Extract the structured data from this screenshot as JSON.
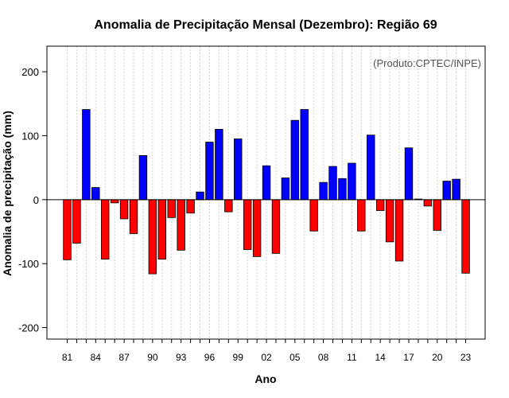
{
  "chart_data": {
    "type": "bar",
    "title": "Anomalia de Precipitação Mensal (Dezembro): Região 69",
    "xlabel": "Ano",
    "ylabel": "Anomalia de precipitação (mm)",
    "credit": "(Produto:CPTEC/INPE)",
    "ylim": [
      -218,
      240
    ],
    "yticks": [
      -200,
      -100,
      0,
      100,
      200
    ],
    "years": [
      1981,
      1982,
      1983,
      1984,
      1985,
      1986,
      1987,
      1988,
      1989,
      1990,
      1991,
      1992,
      1993,
      1994,
      1995,
      1996,
      1997,
      1998,
      1999,
      2000,
      2001,
      2002,
      2003,
      2004,
      2005,
      2006,
      2007,
      2008,
      2009,
      2010,
      2011,
      2012,
      2013,
      2014,
      2015,
      2016,
      2017,
      2018,
      2019,
      2020,
      2021,
      2022,
      2023
    ],
    "values": [
      -94,
      -68,
      141,
      19,
      -93,
      -5,
      -30,
      -53,
      69,
      -116,
      -93,
      -28,
      -79,
      -21,
      12,
      90,
      110,
      -19,
      95,
      -78,
      -89,
      53,
      -84,
      34,
      124,
      141,
      -49,
      27,
      52,
      33,
      57,
      -49,
      101,
      -17,
      -66,
      -96,
      81,
      1,
      -10,
      -48,
      29,
      32,
      -115
    ],
    "xtick_labels": [
      {
        "year": 1981,
        "label": "81"
      },
      {
        "year": 1984,
        "label": "84"
      },
      {
        "year": 1987,
        "label": "87"
      },
      {
        "year": 1990,
        "label": "90"
      },
      {
        "year": 1993,
        "label": "93"
      },
      {
        "year": 1996,
        "label": "96"
      },
      {
        "year": 1999,
        "label": "99"
      },
      {
        "year": 2002,
        "label": "02"
      },
      {
        "year": 2005,
        "label": "05"
      },
      {
        "year": 2008,
        "label": "08"
      },
      {
        "year": 2011,
        "label": "11"
      },
      {
        "year": 2014,
        "label": "14"
      },
      {
        "year": 2017,
        "label": "17"
      },
      {
        "year": 2020,
        "label": "20"
      },
      {
        "year": 2023,
        "label": "23"
      }
    ],
    "colors": {
      "positive": "#0000ff",
      "negative": "#ff0000",
      "grid": "#d0d0d0",
      "axis": "#000000"
    }
  }
}
